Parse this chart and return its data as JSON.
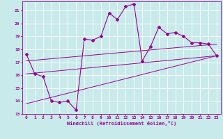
{
  "xlabel": "Windchill (Refroidissement éolien,°C)",
  "bg_color": "#c8eaea",
  "line_color": "#990099",
  "grid_color": "#ffffff",
  "xlim": [
    -0.5,
    23.5
  ],
  "ylim": [
    13,
    21.7
  ],
  "yticks": [
    13,
    14,
    15,
    16,
    17,
    18,
    19,
    20,
    21
  ],
  "xticks": [
    0,
    1,
    2,
    3,
    4,
    5,
    6,
    7,
    8,
    9,
    10,
    11,
    12,
    13,
    14,
    15,
    16,
    17,
    18,
    19,
    20,
    21,
    22,
    23
  ],
  "series1_x": [
    0,
    1,
    2,
    3,
    4,
    5,
    6,
    7,
    8,
    9,
    10,
    11,
    12,
    13,
    14,
    15,
    16,
    17,
    18,
    19,
    20,
    21,
    22,
    23
  ],
  "series1_y": [
    17.6,
    16.1,
    15.9,
    14.0,
    13.9,
    14.0,
    13.3,
    18.8,
    18.7,
    19.0,
    20.8,
    20.3,
    21.3,
    21.5,
    17.1,
    18.2,
    19.7,
    19.2,
    19.3,
    19.0,
    18.5,
    18.5,
    18.4,
    17.5
  ],
  "series2_x": [
    0,
    23
  ],
  "series2_y": [
    16.1,
    17.5
  ],
  "series3_x": [
    0,
    23
  ],
  "series3_y": [
    13.8,
    17.5
  ],
  "series4_x": [
    0,
    23
  ],
  "series4_y": [
    17.1,
    18.4
  ]
}
